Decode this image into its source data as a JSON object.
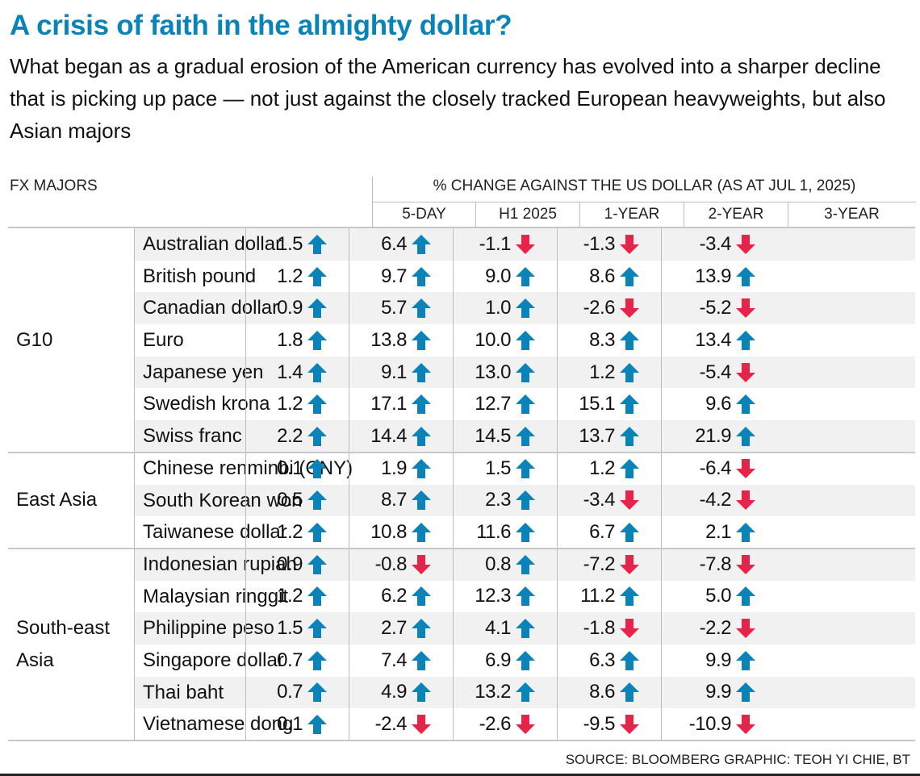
{
  "header": {
    "title": "A crisis of faith in the almighty dollar?",
    "subtitle": "What began as a gradual erosion of the American currency has evolved into a sharper decline that is picking up pace — not just against the closely tracked European heavyweights, but also Asian majors"
  },
  "table": {
    "row_header_label": "FX MAJORS",
    "spanning_header": "% CHANGE AGAINST THE US DOLLAR (AS AT JUL 1, 2025)",
    "columns": [
      "5-DAY",
      "H1 2025",
      "1-YEAR",
      "2-YEAR",
      "3-YEAR"
    ],
    "groups": [
      {
        "label": "G10",
        "rows": 7
      },
      {
        "label": "East Asia",
        "rows": 3
      },
      {
        "label": "South-east Asia",
        "label_lines": [
          "South-east",
          "Asia"
        ],
        "rows": 6
      }
    ],
    "up_color": "#0a84b8",
    "down_color": "#e8234a",
    "up_icon": "arrow-up-icon",
    "down_icon": "arrow-down-icon"
  },
  "chart_data": {
    "type": "table",
    "title": "A crisis of faith in the almighty dollar?",
    "subtitle": "% change against the US dollar (as at Jul 1, 2025)",
    "columns": [
      "5-DAY",
      "H1 2025",
      "1-YEAR",
      "2-YEAR",
      "3-YEAR"
    ],
    "rows": [
      {
        "group": "G10",
        "currency": "Australian dollar",
        "values": [
          1.5,
          6.4,
          -1.1,
          -1.3,
          -3.4
        ]
      },
      {
        "group": "G10",
        "currency": "British pound",
        "values": [
          1.2,
          9.7,
          9.0,
          8.6,
          13.9
        ]
      },
      {
        "group": "G10",
        "currency": "Canadian dollar",
        "values": [
          0.9,
          5.7,
          1.0,
          -2.6,
          -5.2
        ]
      },
      {
        "group": "G10",
        "currency": "Euro",
        "values": [
          1.8,
          13.8,
          10.0,
          8.3,
          13.4
        ]
      },
      {
        "group": "G10",
        "currency": "Japanese yen",
        "values": [
          1.4,
          9.1,
          13.0,
          1.2,
          -5.4
        ]
      },
      {
        "group": "G10",
        "currency": "Swedish krona",
        "values": [
          1.2,
          17.1,
          12.7,
          15.1,
          9.6
        ]
      },
      {
        "group": "G10",
        "currency": "Swiss franc",
        "values": [
          2.2,
          14.4,
          14.5,
          13.7,
          21.9
        ]
      },
      {
        "group": "East Asia",
        "currency": "Chinese renminbi (CNY)",
        "values": [
          0.1,
          1.9,
          1.5,
          1.2,
          -6.4
        ]
      },
      {
        "group": "East Asia",
        "currency": "South Korean won",
        "values": [
          0.5,
          8.7,
          2.3,
          -3.4,
          -4.2
        ]
      },
      {
        "group": "East Asia",
        "currency": "Taiwanese dollar",
        "values": [
          1.2,
          10.8,
          11.6,
          6.7,
          2.1
        ]
      },
      {
        "group": "South-east Asia",
        "currency": "Indonesian rupiah",
        "values": [
          0.9,
          -0.8,
          0.8,
          -7.2,
          -7.8
        ]
      },
      {
        "group": "South-east Asia",
        "currency": "Malaysian ringgit",
        "values": [
          1.2,
          6.2,
          12.3,
          11.2,
          5.0
        ]
      },
      {
        "group": "South-east Asia",
        "currency": "Philippine peso",
        "values": [
          1.5,
          2.7,
          4.1,
          -1.8,
          -2.2
        ]
      },
      {
        "group": "South-east Asia",
        "currency": "Singapore dollar",
        "values": [
          0.7,
          7.4,
          6.9,
          6.3,
          9.9
        ]
      },
      {
        "group": "South-east Asia",
        "currency": "Thai baht",
        "values": [
          0.7,
          4.9,
          13.2,
          8.6,
          9.9
        ]
      },
      {
        "group": "South-east Asia",
        "currency": "Vietnamese dong",
        "values": [
          0.1,
          -2.4,
          -2.6,
          -9.5,
          -10.9
        ]
      }
    ],
    "display_values": [
      [
        "1.5",
        "6.4",
        "-1.1",
        "-1.3",
        "-3.4"
      ],
      [
        "1.2",
        "9.7",
        "9.0",
        "8.6",
        "13.9"
      ],
      [
        "0.9",
        "5.7",
        "1.0",
        "-2.6",
        "-5.2"
      ],
      [
        "1.8",
        "13.8",
        "10.0",
        "8.3",
        "13.4"
      ],
      [
        "1.4",
        "9.1",
        "13.0",
        "1.2",
        "-5.4"
      ],
      [
        "1.2",
        "17.1",
        "12.7",
        "15.1",
        "9.6"
      ],
      [
        "2.2",
        "14.4",
        "14.5",
        "13.7",
        "21.9"
      ],
      [
        "0.1",
        "1.9",
        "1.5",
        "1.2",
        "-6.4"
      ],
      [
        "0.5",
        "8.7",
        "2.3",
        "-3.4",
        "-4.2"
      ],
      [
        "1.2",
        "10.8",
        "11.6",
        "6.7",
        "2.1"
      ],
      [
        "0.9",
        "-0.8",
        "0.8",
        "-7.2",
        "-7.8"
      ],
      [
        "1.2",
        "6.2",
        "12.3",
        "11.2",
        "5.0"
      ],
      [
        "1.5",
        "2.7",
        "4.1",
        "-1.8",
        "-2.2"
      ],
      [
        "0.7",
        "7.4",
        "6.9",
        "6.3",
        "9.9"
      ],
      [
        "0.7",
        "4.9",
        "13.2",
        "8.6",
        "9.9"
      ],
      [
        "0.1",
        "-2.4",
        "-2.6",
        "-9.5",
        "-10.9"
      ]
    ],
    "legend": "none"
  },
  "footer": {
    "source": "SOURCE: BLOOMBERG   GRAPHIC: TEOH YI CHIE, BT"
  }
}
